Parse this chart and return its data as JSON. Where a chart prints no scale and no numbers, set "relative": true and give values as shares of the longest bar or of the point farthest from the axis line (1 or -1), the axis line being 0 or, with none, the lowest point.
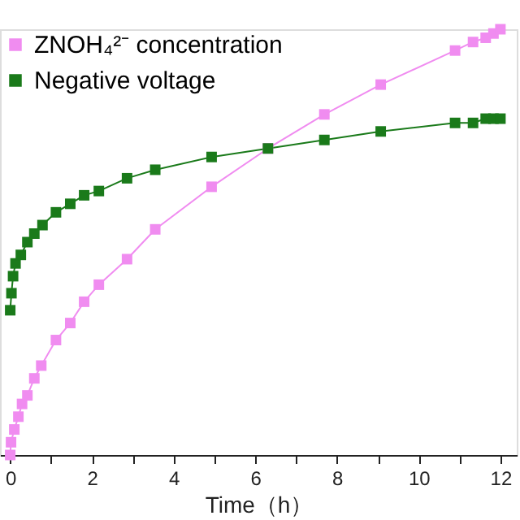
{
  "chart_data": {
    "type": "line",
    "xlabel": "Time（h）",
    "relative": true,
    "tick_labels": "x",
    "legend": "top left",
    "marker": "square",
    "line_style": "solid",
    "grid": false,
    "xlim": [
      -0.25,
      12.4
    ],
    "xticks": [
      0,
      {
        "value": 1,
        "label": null
      },
      2,
      {
        "value": 3,
        "label": null
      },
      4,
      {
        "value": 5,
        "label": null
      },
      6,
      {
        "value": 7,
        "label": null
      },
      8,
      {
        "value": 9,
        "label": null
      },
      10,
      {
        "value": 11,
        "label": null
      },
      12
    ],
    "series": [
      {
        "name": "ZNOH₄²⁻ concentration",
        "color": "#f08cf0",
        "x": [
          0,
          0.02,
          0.1,
          0.2,
          0.29,
          0.42,
          0.59,
          0.76,
          1.12,
          1.47,
          1.81,
          2.17,
          2.86,
          3.55,
          4.93,
          6.31,
          7.69,
          9.07,
          10.89,
          11.33,
          11.64,
          11.83,
          12
        ],
        "values": [
          0,
          0.03,
          0.06,
          0.09,
          0.12,
          0.14,
          0.18,
          0.21,
          0.27,
          0.31,
          0.36,
          0.4,
          0.46,
          0.53,
          0.63,
          0.72,
          0.8,
          0.87,
          0.95,
          0.97,
          0.98,
          0.99,
          1
        ]
      },
      {
        "name": "Negative voltage",
        "color": "#1a7a1a",
        "x": [
          0,
          0.03,
          0.07,
          0.13,
          0.26,
          0.42,
          0.59,
          0.79,
          1.12,
          1.47,
          1.81,
          2.17,
          2.86,
          3.55,
          4.93,
          6.31,
          7.69,
          9.07,
          10.89,
          11.33,
          11.64,
          11.83,
          12
        ],
        "values": [
          0.34,
          0.38,
          0.42,
          0.45,
          0.47,
          0.5,
          0.52,
          0.54,
          0.57,
          0.59,
          0.61,
          0.62,
          0.65,
          0.67,
          0.7,
          0.72,
          0.74,
          0.76,
          0.78,
          0.78,
          0.79,
          0.79,
          0.79
        ]
      }
    ]
  }
}
